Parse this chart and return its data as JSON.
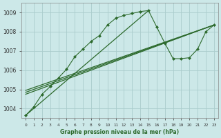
{
  "title": "Graphe pression niveau de la mer (hPa)",
  "xlabel_ticks": [
    "0",
    "1",
    "2",
    "3",
    "4",
    "5",
    "6",
    "7",
    "8",
    "9",
    "10",
    "11",
    "12",
    "13",
    "14",
    "15",
    "16",
    "17",
    "18",
    "19",
    "20",
    "21",
    "22",
    "23"
  ],
  "ylim": [
    1003.5,
    1009.5
  ],
  "yticks": [
    1004,
    1005,
    1006,
    1007,
    1008,
    1009
  ],
  "xlim": [
    -0.5,
    23.5
  ],
  "bg_color": "#cce8e8",
  "grid_color": "#aacccc",
  "line_color": "#2d6a2d",
  "main_line": {
    "x": [
      0,
      1,
      2,
      3,
      4,
      5,
      6,
      7,
      8,
      9,
      10,
      11,
      12,
      13,
      14,
      15,
      16,
      17,
      18,
      19,
      20,
      21,
      22,
      23
    ],
    "y": [
      1003.65,
      1004.1,
      1004.75,
      1005.15,
      1005.6,
      1006.05,
      1006.7,
      1007.1,
      1007.5,
      1007.8,
      1008.35,
      1008.7,
      1008.85,
      1008.95,
      1009.05,
      1009.1,
      1008.25,
      1007.4,
      1006.6,
      1006.6,
      1006.65,
      1007.1,
      1008.0,
      1008.35
    ]
  },
  "line_straight1": {
    "x": [
      0,
      23
    ],
    "y": [
      1004.75,
      1008.35
    ]
  },
  "line_straight2": {
    "x": [
      0,
      23
    ],
    "y": [
      1004.75,
      1008.35
    ]
  },
  "line_straight3": {
    "x": [
      0,
      23
    ],
    "y": [
      1004.9,
      1008.35
    ]
  },
  "line_to_peak": {
    "x": [
      0,
      15
    ],
    "y": [
      1003.65,
      1009.1
    ]
  }
}
